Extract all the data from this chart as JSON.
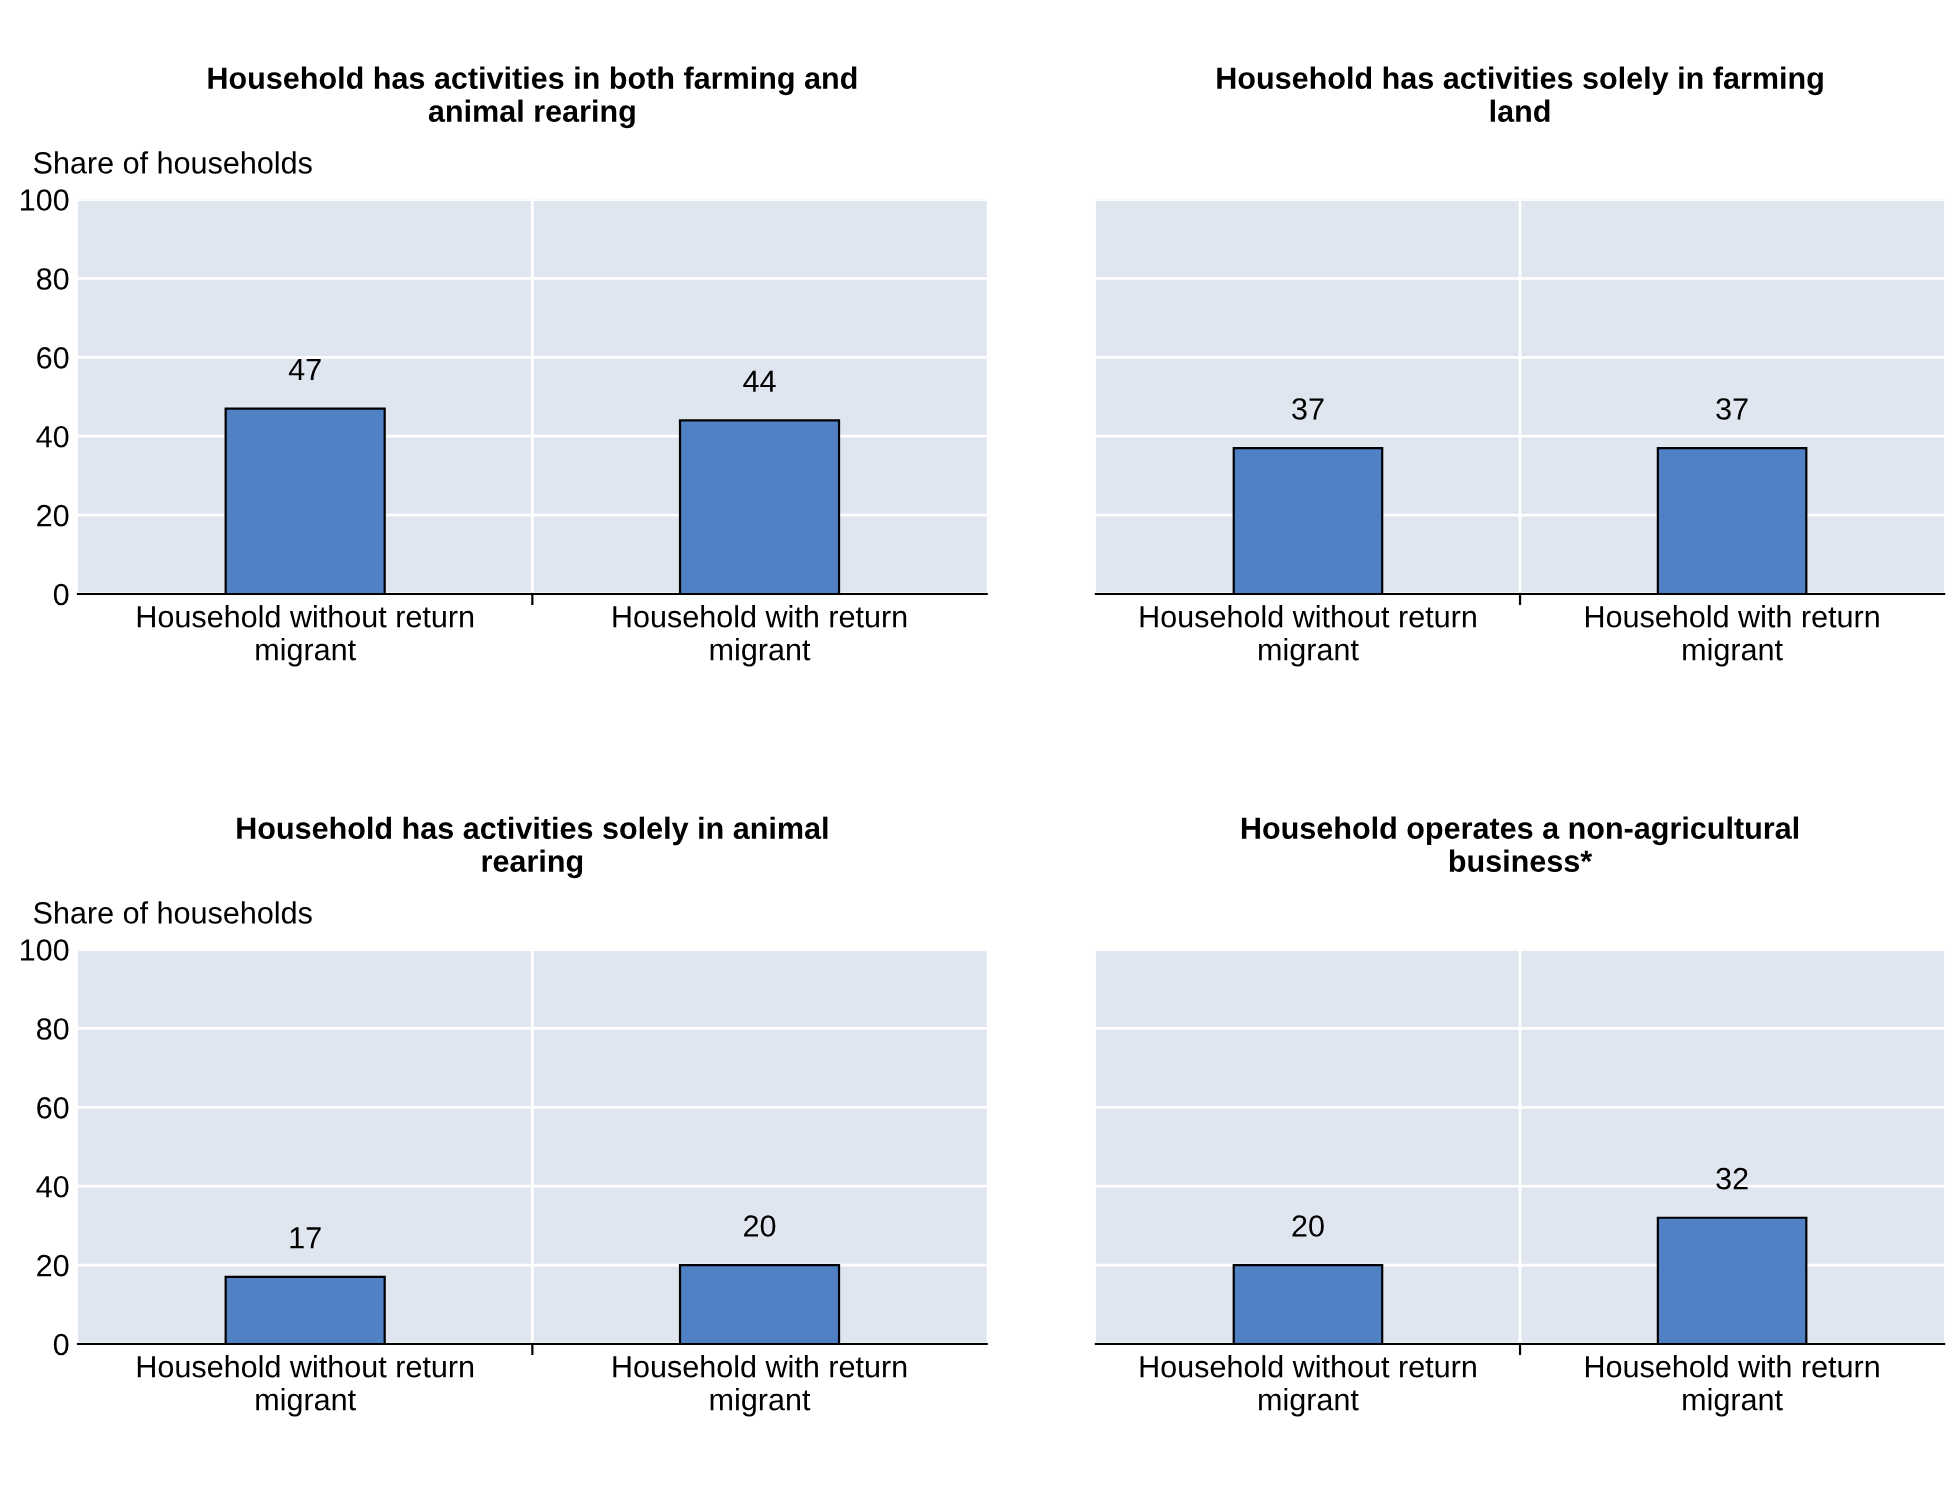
{
  "chart_data": [
    {
      "type": "bar",
      "title": "Household has activities in both farming and\nanimal rearing",
      "ylabel": "Share of households",
      "categories": [
        "Household without return\nmigrant",
        "Household with return\nmigrant"
      ],
      "values": [
        47,
        44
      ],
      "color": "#4f81c4",
      "ylim": [
        0,
        100
      ],
      "yticks": [
        0,
        20,
        40,
        60,
        80,
        100
      ],
      "grid": true,
      "data_labels": true
    },
    {
      "type": "bar",
      "title": "Household has activities solely in farming\nland",
      "categories": [
        "Household without return\nmigrant",
        "Household with return\nmigrant"
      ],
      "values": [
        37,
        37
      ],
      "color": "#4f81c4",
      "ylim": [
        0,
        100
      ],
      "yticks": [
        0,
        20,
        40,
        60,
        80,
        100
      ],
      "grid": true,
      "data_labels": true,
      "tick_labels": "x"
    },
    {
      "type": "bar",
      "title": "Household has activities solely in animal\nrearing",
      "ylabel": "Share of households",
      "categories": [
        "Household without return\nmigrant",
        "Household with return\nmigrant"
      ],
      "values": [
        17,
        20
      ],
      "color": "#4f81c4",
      "ylim": [
        0,
        100
      ],
      "yticks": [
        0,
        20,
        40,
        60,
        80,
        100
      ],
      "grid": true,
      "data_labels": true
    },
    {
      "type": "bar",
      "title": "Household operates a non-agricultural\nbusiness*",
      "categories": [
        "Household without return\nmigrant",
        "Household with return\nmigrant"
      ],
      "values": [
        20,
        32
      ],
      "color": "#4f81c4",
      "ylim": [
        0,
        100
      ],
      "yticks": [
        0,
        20,
        40,
        60,
        80,
        100
      ],
      "grid": true,
      "data_labels": true,
      "tick_labels": "x"
    }
  ]
}
